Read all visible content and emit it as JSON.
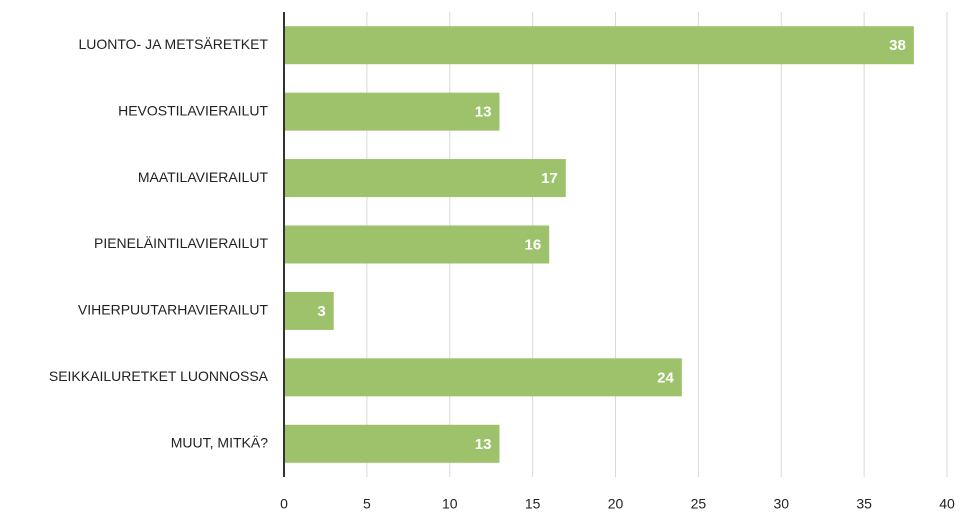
{
  "chart_data": {
    "type": "bar",
    "categories": [
      "LUONTO- JA METSÄRETKET",
      "HEVOSTILAVIERAILUT",
      "MAATILAVIERAILUT",
      "PIENELÄINTILAVIERAILUT",
      "VIHERPUUTARHAVIERAILUT",
      "SEIKKAILURETKET LUONNOSSA",
      "MUUT, MITKÄ?"
    ],
    "values": [
      38,
      13,
      17,
      16,
      3,
      24,
      13
    ],
    "color": "#9dc26b",
    "xlim": [
      0,
      40
    ],
    "xticks": [
      0,
      5,
      10,
      15,
      20,
      25,
      30,
      35,
      40
    ],
    "grid": true,
    "data_labels": true
  }
}
